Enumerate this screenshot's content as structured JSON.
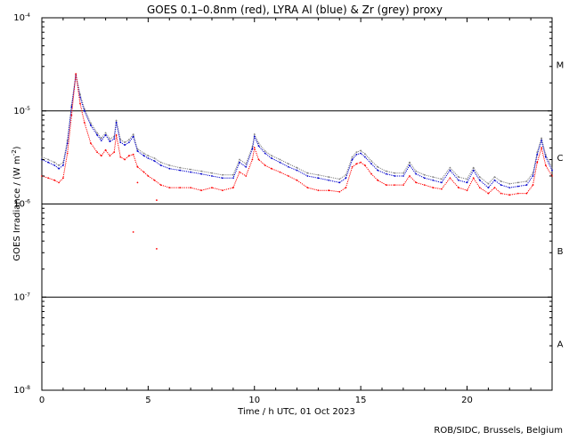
{
  "chart_data": {
    "type": "line",
    "title": "GOES 0.1–0.8nm (red), LYRA Al (blue) & Zr (grey) proxy",
    "xlabel": "Time / h UTC, 01 Oct 2023",
    "ylabel": "GOES Irradiance / (W m",
    "ylabel_sup": "-2",
    "ylabel_close": ")",
    "credit": "ROB/SIDC, Brussels, Belgium",
    "xlim": [
      0,
      24
    ],
    "ylim": [
      1e-08,
      0.0001
    ],
    "yscale": "log",
    "grid": false,
    "x_ticks": [
      {
        "value": 0,
        "label": "0"
      },
      {
        "value": 5,
        "label": "5"
      },
      {
        "value": 10,
        "label": "10"
      },
      {
        "value": 15,
        "label": "15"
      },
      {
        "value": 20,
        "label": "20"
      }
    ],
    "y_ticks": [
      {
        "value": 0.0001,
        "base": "10",
        "exp": "-4"
      },
      {
        "value": 1e-05,
        "base": "10",
        "exp": "-5"
      },
      {
        "value": 1e-06,
        "base": "10",
        "exp": "-6"
      },
      {
        "value": 1e-07,
        "base": "10",
        "exp": "-7"
      },
      {
        "value": 1e-08,
        "base": "10",
        "exp": "-8"
      }
    ],
    "class_lines": [
      1e-05,
      1e-06,
      1e-07
    ],
    "flare_classes": [
      {
        "label": "M",
        "value": 3.16e-05
      },
      {
        "label": "C",
        "value": 3.16e-06
      },
      {
        "label": "B",
        "value": 3.16e-07
      },
      {
        "label": "A",
        "value": 3.16e-08
      }
    ],
    "series": [
      {
        "color": "#ff0000",
        "x": [
          0,
          0.3,
          0.6,
          0.8,
          1.0,
          1.2,
          1.4,
          1.6,
          1.8,
          2.0,
          2.3,
          2.6,
          2.8,
          3.0,
          3.2,
          3.4,
          3.5,
          3.7,
          3.9,
          4.1,
          4.3,
          4.5,
          4.8,
          5.0,
          5.3,
          5.6,
          6.0,
          6.5,
          7.0,
          7.5,
          8.0,
          8.5,
          9.0,
          9.3,
          9.6,
          9.9,
          10.0,
          10.2,
          10.5,
          10.8,
          11.2,
          11.6,
          12.0,
          12.5,
          13.0,
          13.5,
          14.0,
          14.3,
          14.6,
          14.8,
          15.0,
          15.2,
          15.5,
          15.8,
          16.2,
          16.6,
          17.0,
          17.3,
          17.6,
          18.0,
          18.4,
          18.8,
          19.2,
          19.6,
          20.0,
          20.3,
          20.6,
          21.0,
          21.3,
          21.6,
          22.0,
          22.4,
          22.8,
          23.1,
          23.3,
          23.5,
          23.7,
          24.0
        ],
        "y": [
          2e-06,
          1.9e-06,
          1.8e-06,
          1.7e-06,
          1.9e-06,
          3.5e-06,
          9e-06,
          2.5e-05,
          1.2e-05,
          7.5e-06,
          4.5e-06,
          3.6e-06,
          3.3e-06,
          3.8e-06,
          3.3e-06,
          3.6e-06,
          5.5e-06,
          3.2e-06,
          3e-06,
          3.3e-06,
          3.4e-06,
          2.5e-06,
          2.2e-06,
          2e-06,
          1.8e-06,
          1.6e-06,
          1.5e-06,
          1.5e-06,
          1.5e-06,
          1.4e-06,
          1.5e-06,
          1.4e-06,
          1.5e-06,
          2.2e-06,
          2e-06,
          3e-06,
          4e-06,
          3e-06,
          2.6e-06,
          2.4e-06,
          2.2e-06,
          2e-06,
          1.8e-06,
          1.5e-06,
          1.4e-06,
          1.4e-06,
          1.35e-06,
          1.5e-06,
          2.5e-06,
          2.7e-06,
          2.8e-06,
          2.6e-06,
          2.1e-06,
          1.8e-06,
          1.6e-06,
          1.6e-06,
          1.6e-06,
          2e-06,
          1.7e-06,
          1.6e-06,
          1.5e-06,
          1.45e-06,
          1.9e-06,
          1.5e-06,
          1.4e-06,
          1.9e-06,
          1.5e-06,
          1.3e-06,
          1.5e-06,
          1.3e-06,
          1.25e-06,
          1.3e-06,
          1.3e-06,
          1.6e-06,
          2.8e-06,
          4e-06,
          2.6e-06,
          2e-06
        ]
      },
      {
        "color": "#0000cc",
        "x": [
          0,
          0.3,
          0.6,
          0.8,
          1.0,
          1.2,
          1.4,
          1.6,
          1.8,
          2.0,
          2.3,
          2.6,
          2.8,
          3.0,
          3.2,
          3.4,
          3.5,
          3.7,
          3.9,
          4.1,
          4.3,
          4.5,
          4.8,
          5.0,
          5.3,
          5.6,
          6.0,
          6.5,
          7.0,
          7.5,
          8.0,
          8.5,
          9.0,
          9.3,
          9.6,
          9.9,
          10.0,
          10.2,
          10.5,
          10.8,
          11.2,
          11.6,
          12.0,
          12.5,
          13.0,
          13.5,
          14.0,
          14.3,
          14.6,
          14.8,
          15.0,
          15.2,
          15.5,
          15.8,
          16.2,
          16.6,
          17.0,
          17.3,
          17.6,
          18.0,
          18.4,
          18.8,
          19.2,
          19.6,
          20.0,
          20.3,
          20.6,
          21.0,
          21.3,
          21.6,
          22.0,
          22.4,
          22.8,
          23.1,
          23.3,
          23.5,
          23.7,
          24.0
        ],
        "y": [
          3e-06,
          2.8e-06,
          2.6e-06,
          2.4e-06,
          2.6e-06,
          4.5e-06,
          1.1e-05,
          2.4e-05,
          1.4e-05,
          1e-05,
          7e-06,
          5.5e-06,
          4.8e-06,
          5.5e-06,
          4.7e-06,
          5e-06,
          7.5e-06,
          4.6e-06,
          4.3e-06,
          4.6e-06,
          5.3e-06,
          3.7e-06,
          3.3e-06,
          3.1e-06,
          2.9e-06,
          2.6e-06,
          2.4e-06,
          2.3e-06,
          2.2e-06,
          2.1e-06,
          2e-06,
          1.9e-06,
          1.9e-06,
          2.8e-06,
          2.5e-06,
          3.9e-06,
          5.3e-06,
          4.2e-06,
          3.5e-06,
          3.1e-06,
          2.8e-06,
          2.5e-06,
          2.3e-06,
          2e-06,
          1.9e-06,
          1.8e-06,
          1.7e-06,
          1.9e-06,
          3e-06,
          3.4e-06,
          3.5e-06,
          3.2e-06,
          2.7e-06,
          2.3e-06,
          2.1e-06,
          2e-06,
          2e-06,
          2.6e-06,
          2.1e-06,
          1.9e-06,
          1.8e-06,
          1.7e-06,
          2.3e-06,
          1.8e-06,
          1.7e-06,
          2.3e-06,
          1.8e-06,
          1.5e-06,
          1.8e-06,
          1.6e-06,
          1.5e-06,
          1.55e-06,
          1.6e-06,
          2e-06,
          3.4e-06,
          4.8e-06,
          3.2e-06,
          2.3e-06
        ]
      },
      {
        "color": "#808080",
        "x": [
          0,
          0.3,
          0.6,
          0.8,
          1.0,
          1.2,
          1.4,
          1.6,
          1.8,
          2.0,
          2.3,
          2.6,
          2.8,
          3.0,
          3.2,
          3.4,
          3.5,
          3.7,
          3.9,
          4.1,
          4.3,
          4.5,
          4.8,
          5.0,
          5.3,
          5.6,
          6.0,
          6.5,
          7.0,
          7.5,
          8.0,
          8.5,
          9.0,
          9.3,
          9.6,
          9.9,
          10.0,
          10.2,
          10.5,
          10.8,
          11.2,
          11.6,
          12.0,
          12.5,
          13.0,
          13.5,
          14.0,
          14.3,
          14.6,
          14.8,
          15.0,
          15.2,
          15.5,
          15.8,
          16.2,
          16.6,
          17.0,
          17.3,
          17.6,
          18.0,
          18.4,
          18.8,
          19.2,
          19.6,
          20.0,
          20.3,
          20.6,
          21.0,
          21.3,
          21.6,
          22.0,
          22.4,
          22.8,
          23.1,
          23.3,
          23.5,
          23.7,
          24.0
        ],
        "y": [
          3.2e-06,
          3e-06,
          2.8e-06,
          2.6e-06,
          2.8e-06,
          4.8e-06,
          1.15e-05,
          2.5e-05,
          1.5e-05,
          1.05e-05,
          7.4e-06,
          5.8e-06,
          5.1e-06,
          5.8e-06,
          5e-06,
          5.3e-06,
          7.9e-06,
          4.9e-06,
          4.6e-06,
          4.9e-06,
          5.6e-06,
          3.9e-06,
          3.5e-06,
          3.3e-06,
          3.1e-06,
          2.8e-06,
          2.6e-06,
          2.45e-06,
          2.35e-06,
          2.25e-06,
          2.15e-06,
          2.05e-06,
          2.05e-06,
          3e-06,
          2.7e-06,
          4.1e-06,
          5.6e-06,
          4.5e-06,
          3.7e-06,
          3.3e-06,
          3e-06,
          2.7e-06,
          2.45e-06,
          2.15e-06,
          2.05e-06,
          1.95e-06,
          1.85e-06,
          2.05e-06,
          3.2e-06,
          3.6e-06,
          3.75e-06,
          3.45e-06,
          2.9e-06,
          2.5e-06,
          2.25e-06,
          2.15e-06,
          2.15e-06,
          2.8e-06,
          2.25e-06,
          2.05e-06,
          1.95e-06,
          1.85e-06,
          2.45e-06,
          1.95e-06,
          1.85e-06,
          2.45e-06,
          1.95e-06,
          1.65e-06,
          1.95e-06,
          1.75e-06,
          1.65e-06,
          1.7e-06,
          1.75e-06,
          2.15e-06,
          3.6e-06,
          5.1e-06,
          3.4e-06,
          2.45e-06
        ]
      }
    ],
    "outliers": [
      {
        "x": 4.5,
        "y": 1.7e-06
      },
      {
        "x": 5.4,
        "y": 1.1e-06
      },
      {
        "x": 4.3,
        "y": 5e-07
      },
      {
        "x": 5.4,
        "y": 3.3e-07
      }
    ]
  }
}
